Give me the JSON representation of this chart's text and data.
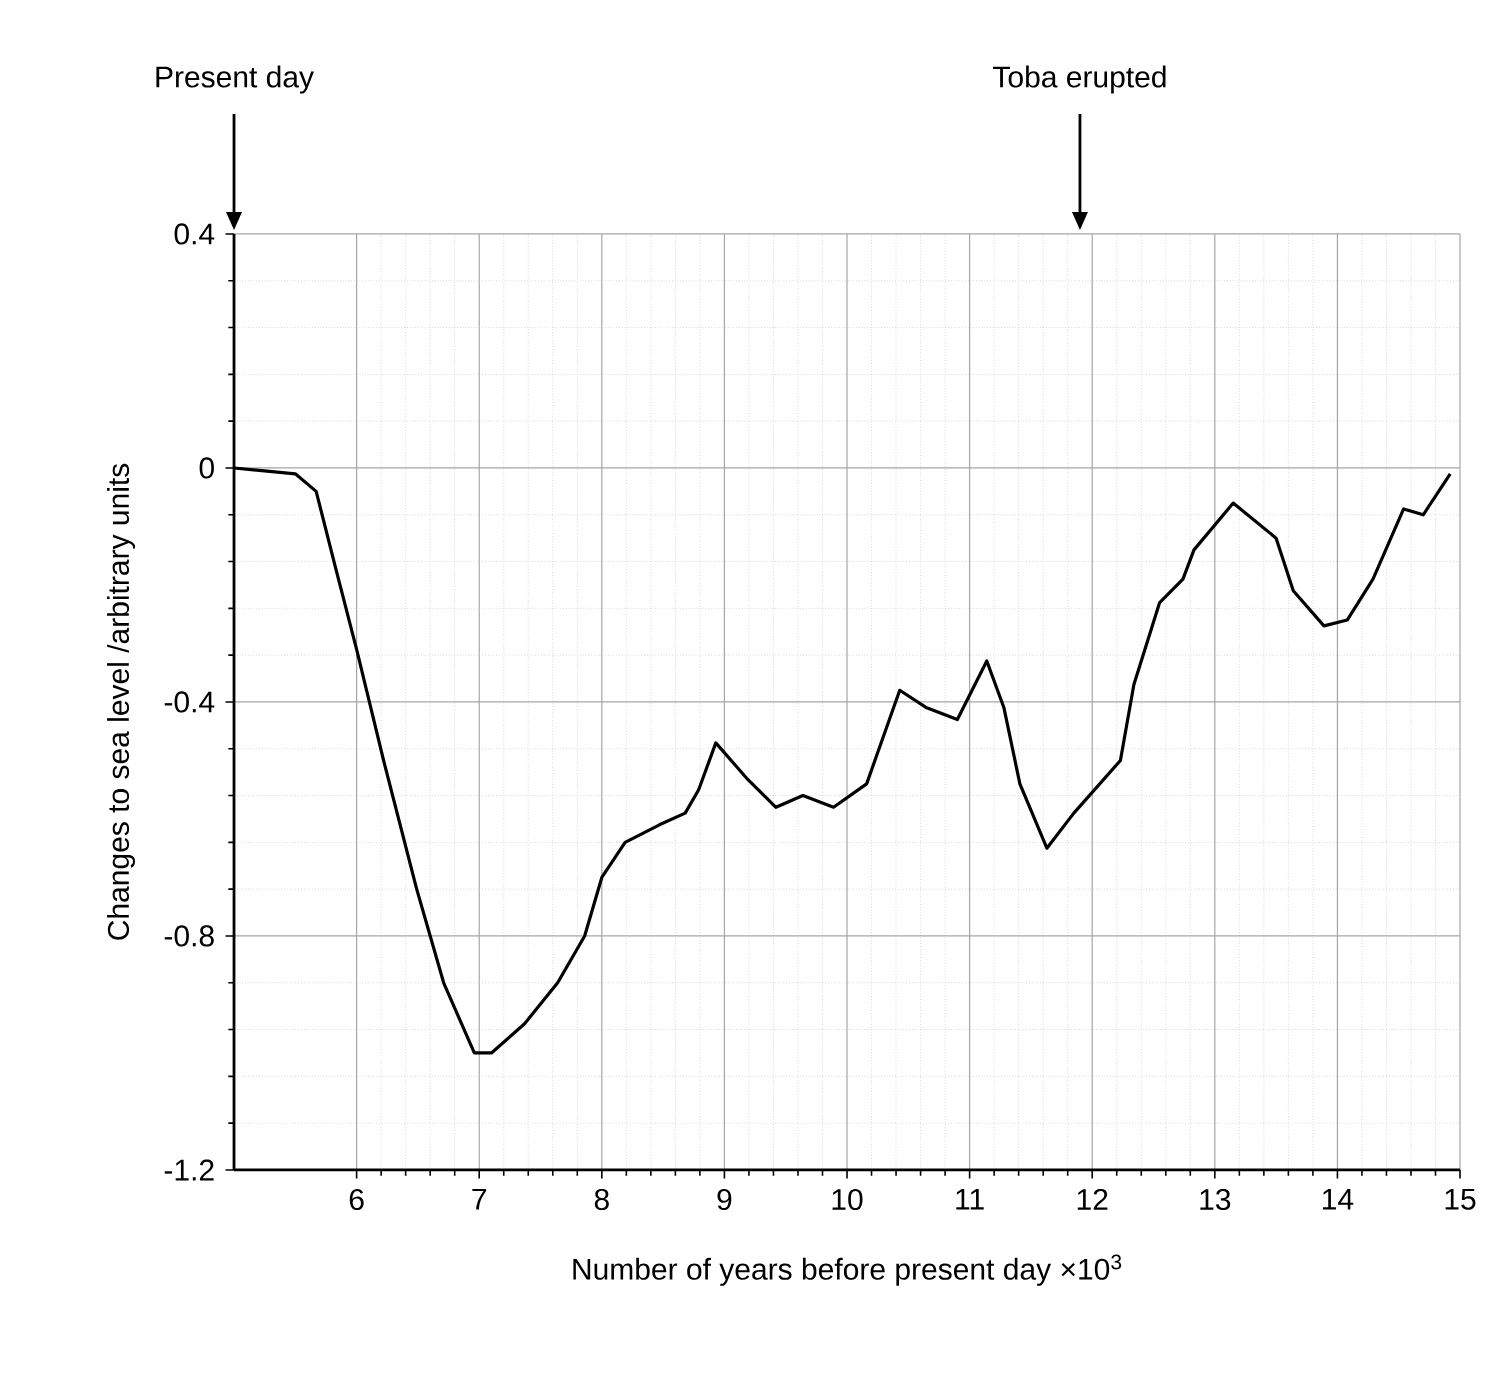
{
  "chart_data": {
    "type": "line",
    "xlabel": "Number of years before present day ×10$^{3}$",
    "ylabel": "Changes to sea level /arbitrary units",
    "annotations": [
      "Present day",
      "Toba erupted"
    ],
    "xlim": [
      5,
      15
    ],
    "xticks": [
      6,
      7,
      8,
      9,
      10,
      11,
      12,
      13,
      14,
      15
    ],
    "ylim": [
      -1.2,
      0.4
    ],
    "yticks": [
      0.4,
      0,
      -0.4,
      -0.8,
      -1.2
    ],
    "grid": true,
    "marker": "none",
    "line_style": "solid",
    "series": [
      {
        "color": "#000000",
        "x": [
          5,
          5.5,
          5.67,
          5.84,
          6,
          6.22,
          6.49,
          6.71,
          6.96,
          7.1,
          7.37,
          7.64,
          7.86,
          8.0,
          8.19,
          8.47,
          8.68,
          8.79,
          8.93,
          9.18,
          9.42,
          9.64,
          9.89,
          10.16,
          10.43,
          10.65,
          10.9,
          11.14,
          11.28,
          11.41,
          11.63,
          11.85,
          12.23,
          12.34,
          12.55,
          12.74,
          12.83,
          13.15,
          13.5,
          13.64,
          13.89,
          14.08,
          14.29,
          14.54,
          14.7,
          14.92
        ],
        "values": [
          0,
          -0.01,
          -0.04,
          -0.18,
          -0.31,
          -0.5,
          -0.72,
          -0.88,
          -1.0,
          -1.0,
          -0.95,
          -0.88,
          -0.8,
          -0.7,
          -0.64,
          -0.61,
          -0.59,
          -0.55,
          -0.47,
          -0.53,
          -0.58,
          -0.56,
          -0.58,
          -0.54,
          -0.38,
          -0.41,
          -0.43,
          -0.33,
          -0.41,
          -0.54,
          -0.65,
          -0.59,
          -0.5,
          -0.37,
          -0.23,
          -0.19,
          -0.14,
          -0.06,
          -0.12,
          -0.21,
          -0.27,
          -0.26,
          -0.19,
          -0.07,
          -0.08,
          -0.01
        ]
      }
    ]
  }
}
